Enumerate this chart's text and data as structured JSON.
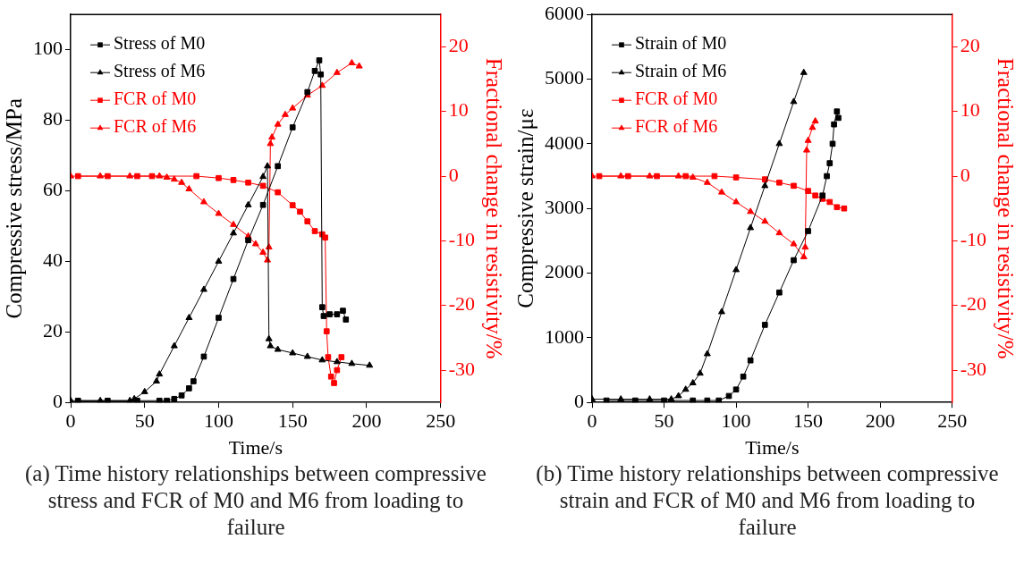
{
  "chart_data": [
    {
      "type": "line",
      "xlabel": "Time/s",
      "ylabel": "Compressive stress/MPa",
      "y2label": "Fractional change in resistivity/%",
      "annotations": [
        "(a) Time history relationships between compressive stress and FCR of M0 and M6 from loading to failure"
      ],
      "xlim": [
        0,
        250
      ],
      "xticks": [
        0,
        50,
        100,
        150,
        200,
        250
      ],
      "ylim": [
        0,
        110
      ],
      "yticks": [
        0,
        20,
        40,
        60,
        80,
        100
      ],
      "y2lim": [
        -35,
        25
      ],
      "y2ticks": [
        -30,
        -20,
        -10,
        0,
        10,
        20
      ],
      "legend": "top left",
      "grid": false,
      "series": [
        {
          "name": "Stress of M0",
          "color": "#000000",
          "marker": "square",
          "x": [
            5,
            25,
            45,
            60,
            65,
            70,
            75,
            80,
            83,
            90,
            100,
            110,
            120,
            130,
            140,
            150,
            160,
            165,
            168,
            169,
            170,
            171,
            175,
            180,
            184,
            186
          ],
          "values": [
            0.5,
            0.5,
            0.5,
            0.5,
            0.5,
            1,
            2,
            4,
            6,
            13,
            24,
            35,
            46,
            56,
            67,
            78,
            88,
            94,
            97,
            93,
            27,
            24.5,
            25,
            25,
            26,
            23.5
          ]
        },
        {
          "name": "Stress of M6",
          "color": "#000000",
          "marker": "triangle",
          "x": [
            0,
            20,
            40,
            43,
            50,
            58,
            60,
            70,
            80,
            90,
            100,
            110,
            120,
            130,
            133,
            134,
            135,
            140,
            150,
            160,
            170,
            180,
            190,
            202
          ],
          "values": [
            0.5,
            0.5,
            0.5,
            1,
            3,
            6,
            8,
            16,
            24,
            32,
            40,
            48,
            56,
            64,
            67,
            18,
            16,
            15,
            14,
            13,
            12,
            11.5,
            11,
            10.5
          ]
        },
        {
          "name": "FCR of M0",
          "color": "#ff0000",
          "marker": "square",
          "axis": "y2",
          "x": [
            5,
            25,
            45,
            55,
            85,
            100,
            110,
            120,
            130,
            140,
            150,
            155,
            160,
            165,
            170,
            172,
            173,
            174,
            176,
            178,
            180,
            183
          ],
          "values": [
            0,
            0,
            0,
            0,
            0,
            -0.3,
            -0.6,
            -1,
            -1.5,
            -2.5,
            -4.5,
            -5.5,
            -7,
            -8.5,
            -9,
            -9.5,
            -24,
            -28,
            -31,
            -32,
            -30,
            -28
          ]
        },
        {
          "name": "FCR of M6",
          "color": "#ff0000",
          "marker": "triangle",
          "axis": "y2",
          "x": [
            0,
            20,
            40,
            60,
            65,
            70,
            75,
            80,
            90,
            100,
            110,
            120,
            125,
            130,
            133,
            134,
            135,
            136,
            140,
            145,
            150,
            160,
            170,
            180,
            190,
            195
          ],
          "values": [
            0,
            0,
            0,
            0,
            -0.2,
            -0.5,
            -1,
            -2,
            -4,
            -5.8,
            -7.5,
            -9.3,
            -10.5,
            -11.8,
            -13,
            -11,
            5,
            6,
            8,
            9.5,
            10.5,
            12.5,
            14,
            16,
            17.5,
            17
          ]
        }
      ]
    },
    {
      "type": "line",
      "xlabel": "Time/s",
      "ylabel": "Compressive strain/με",
      "y2label": "Fractional change in resistivity/%",
      "annotations": [
        "(b) Time history relationships between compressive strain and FCR of M0 and M6 from loading to failure"
      ],
      "xlim": [
        0,
        250
      ],
      "xticks": [
        0,
        50,
        100,
        150,
        200,
        250
      ],
      "ylim": [
        0,
        6000
      ],
      "yticks": [
        0,
        1000,
        2000,
        3000,
        4000,
        5000,
        6000
      ],
      "y2lim": [
        -35,
        25
      ],
      "y2ticks": [
        -30,
        -20,
        -10,
        0,
        10,
        20
      ],
      "legend": "top left",
      "grid": false,
      "series": [
        {
          "name": "Strain of M0",
          "color": "#000000",
          "marker": "square",
          "x": [
            10,
            30,
            50,
            70,
            80,
            88,
            95,
            100,
            105,
            110,
            120,
            130,
            140,
            150,
            160,
            163,
            165,
            167,
            168,
            170,
            171
          ],
          "values": [
            30,
            30,
            30,
            30,
            30,
            30,
            100,
            200,
            400,
            650,
            1200,
            1700,
            2200,
            2650,
            3200,
            3500,
            3700,
            4000,
            4300,
            4500,
            4400
          ]
        },
        {
          "name": "Strain of M6",
          "color": "#000000",
          "marker": "triangle",
          "x": [
            0,
            20,
            40,
            55,
            60,
            65,
            70,
            75,
            80,
            90,
            100,
            110,
            120,
            130,
            140,
            147
          ],
          "values": [
            50,
            50,
            50,
            50,
            100,
            200,
            300,
            450,
            750,
            1400,
            2050,
            2700,
            3350,
            4000,
            4650,
            5100
          ]
        },
        {
          "name": "FCR of M0",
          "color": "#ff0000",
          "marker": "square",
          "axis": "y2",
          "x": [
            5,
            25,
            45,
            65,
            85,
            100,
            120,
            130,
            140,
            150,
            155,
            160,
            165,
            170,
            175
          ],
          "values": [
            0,
            0,
            0,
            0,
            0,
            -0.2,
            -0.5,
            -1,
            -1.5,
            -2.3,
            -3,
            -3.5,
            -4,
            -4.8,
            -5
          ]
        },
        {
          "name": "FCR of M6",
          "color": "#ff0000",
          "marker": "triangle",
          "axis": "y2",
          "x": [
            0,
            20,
            40,
            60,
            70,
            80,
            90,
            100,
            110,
            120,
            130,
            140,
            147,
            148,
            149,
            150,
            153,
            155
          ],
          "values": [
            0,
            0,
            0,
            0,
            -0.2,
            -1,
            -2.5,
            -4,
            -5.5,
            -7,
            -8.8,
            -10.5,
            -12.5,
            -11,
            4,
            5.5,
            7.5,
            8.5
          ]
        }
      ]
    }
  ]
}
